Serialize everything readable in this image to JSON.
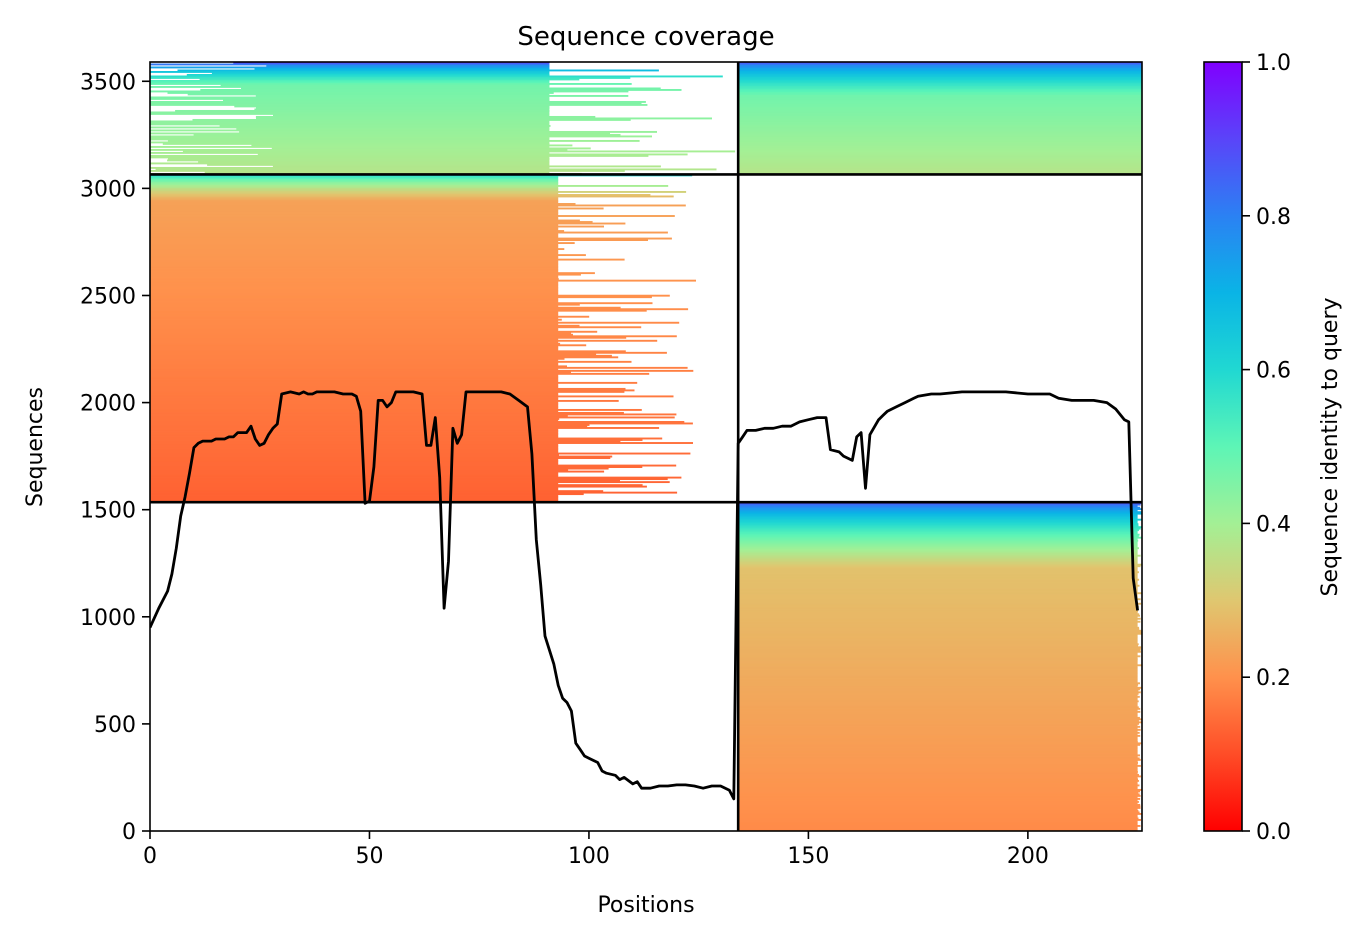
{
  "chart_data": {
    "type": "heatmap",
    "title": "Sequence coverage",
    "xlabel": "Positions",
    "ylabel": "Sequences",
    "xlim": [
      0,
      226
    ],
    "ylim": [
      0,
      3590
    ],
    "xticks": [
      0,
      50,
      100,
      150,
      200
    ],
    "yticks": [
      0,
      500,
      1000,
      1500,
      2000,
      2500,
      3000,
      3500
    ],
    "colorbar": {
      "label": "Sequence identity to query",
      "range": [
        0.0,
        1.0
      ],
      "ticks": [
        "0.0",
        "0.2",
        "0.4",
        "0.6",
        "0.8",
        "1.0"
      ],
      "colormap": "rainbow_r"
    },
    "colors": {
      "line": "#000000",
      "divider": "#000000",
      "empty": "#ffffff"
    },
    "dividers": {
      "x": [
        134
      ],
      "y": [
        1535,
        3065
      ]
    },
    "blocks": [
      {
        "name": "top-left",
        "x": [
          0,
          134
        ],
        "y": [
          3065,
          3590
        ],
        "identity_low": 0.42,
        "identity_high": 0.9,
        "high_fraction": 0.2,
        "base_coverage_x": 91,
        "ragged_max_x": 134
      },
      {
        "name": "top-right",
        "x": [
          134,
          226
        ],
        "y": [
          3065,
          3590
        ],
        "identity_low": 0.42,
        "identity_high": 0.88,
        "high_fraction": 0.3,
        "base_coverage_x": 226,
        "ragged_max_x": 226
      },
      {
        "name": "middle-left",
        "x": [
          0,
          134
        ],
        "y": [
          1535,
          3065
        ],
        "identity_low": 0.18,
        "identity_high": 0.62,
        "high_fraction": 0.08,
        "base_coverage_x": 93,
        "ragged_max_x": 125
      },
      {
        "name": "bottom-right",
        "x": [
          134,
          226
        ],
        "y": [
          0,
          1535
        ],
        "identity_low": 0.24,
        "identity_high": 0.9,
        "high_fraction": 0.2,
        "base_coverage_x": 225,
        "ragged_max_x": 226
      }
    ],
    "coverage_line": [
      [
        0,
        950
      ],
      [
        2,
        1040
      ],
      [
        4,
        1120
      ],
      [
        5,
        1200
      ],
      [
        6,
        1320
      ],
      [
        7,
        1470
      ],
      [
        8,
        1560
      ],
      [
        9,
        1670
      ],
      [
        10,
        1790
      ],
      [
        11,
        1810
      ],
      [
        12,
        1820
      ],
      [
        14,
        1820
      ],
      [
        15,
        1830
      ],
      [
        17,
        1830
      ],
      [
        18,
        1840
      ],
      [
        19,
        1840
      ],
      [
        20,
        1860
      ],
      [
        22,
        1860
      ],
      [
        23,
        1890
      ],
      [
        24,
        1830
      ],
      [
        25,
        1800
      ],
      [
        26,
        1810
      ],
      [
        27,
        1850
      ],
      [
        28,
        1880
      ],
      [
        29,
        1900
      ],
      [
        30,
        2040
      ],
      [
        32,
        2050
      ],
      [
        34,
        2040
      ],
      [
        35,
        2050
      ],
      [
        36,
        2040
      ],
      [
        37,
        2040
      ],
      [
        38,
        2050
      ],
      [
        40,
        2050
      ],
      [
        42,
        2050
      ],
      [
        44,
        2040
      ],
      [
        46,
        2040
      ],
      [
        47,
        2030
      ],
      [
        48,
        1960
      ],
      [
        49,
        1530
      ],
      [
        50,
        1540
      ],
      [
        51,
        1700
      ],
      [
        52,
        2010
      ],
      [
        53,
        2010
      ],
      [
        54,
        1980
      ],
      [
        55,
        2000
      ],
      [
        56,
        2050
      ],
      [
        58,
        2050
      ],
      [
        60,
        2050
      ],
      [
        62,
        2040
      ],
      [
        63,
        1800
      ],
      [
        64,
        1800
      ],
      [
        65,
        1930
      ],
      [
        66,
        1650
      ],
      [
        67,
        1040
      ],
      [
        68,
        1260
      ],
      [
        69,
        1880
      ],
      [
        70,
        1810
      ],
      [
        71,
        1850
      ],
      [
        72,
        2050
      ],
      [
        74,
        2050
      ],
      [
        78,
        2050
      ],
      [
        80,
        2050
      ],
      [
        82,
        2040
      ],
      [
        84,
        2010
      ],
      [
        86,
        1980
      ],
      [
        87,
        1760
      ],
      [
        88,
        1360
      ],
      [
        89,
        1150
      ],
      [
        90,
        910
      ],
      [
        92,
        780
      ],
      [
        93,
        680
      ],
      [
        94,
        620
      ],
      [
        95,
        600
      ],
      [
        96,
        560
      ],
      [
        97,
        410
      ],
      [
        98,
        380
      ],
      [
        99,
        350
      ],
      [
        100,
        340
      ],
      [
        102,
        320
      ],
      [
        103,
        280
      ],
      [
        104,
        270
      ],
      [
        106,
        260
      ],
      [
        107,
        240
      ],
      [
        108,
        250
      ],
      [
        110,
        220
      ],
      [
        111,
        230
      ],
      [
        112,
        200
      ],
      [
        114,
        200
      ],
      [
        116,
        210
      ],
      [
        118,
        210
      ],
      [
        120,
        215
      ],
      [
        122,
        215
      ],
      [
        124,
        210
      ],
      [
        126,
        200
      ],
      [
        128,
        210
      ],
      [
        130,
        210
      ],
      [
        132,
        190
      ],
      [
        133,
        150
      ],
      [
        134,
        1810
      ],
      [
        135,
        1840
      ],
      [
        136,
        1870
      ],
      [
        138,
        1870
      ],
      [
        140,
        1880
      ],
      [
        142,
        1880
      ],
      [
        144,
        1890
      ],
      [
        146,
        1890
      ],
      [
        148,
        1910
      ],
      [
        150,
        1920
      ],
      [
        152,
        1930
      ],
      [
        154,
        1930
      ],
      [
        155,
        1780
      ],
      [
        157,
        1770
      ],
      [
        158,
        1750
      ],
      [
        160,
        1730
      ],
      [
        161,
        1840
      ],
      [
        162,
        1860
      ],
      [
        163,
        1600
      ],
      [
        164,
        1850
      ],
      [
        166,
        1920
      ],
      [
        167,
        1940
      ],
      [
        168,
        1960
      ],
      [
        170,
        1980
      ],
      [
        172,
        2000
      ],
      [
        174,
        2020
      ],
      [
        175,
        2030
      ],
      [
        178,
        2040
      ],
      [
        180,
        2040
      ],
      [
        185,
        2050
      ],
      [
        190,
        2050
      ],
      [
        195,
        2050
      ],
      [
        200,
        2040
      ],
      [
        205,
        2040
      ],
      [
        207,
        2020
      ],
      [
        210,
        2010
      ],
      [
        215,
        2010
      ],
      [
        218,
        2000
      ],
      [
        220,
        1970
      ],
      [
        222,
        1920
      ],
      [
        223,
        1910
      ],
      [
        224,
        1180
      ],
      [
        225,
        1030
      ]
    ]
  }
}
